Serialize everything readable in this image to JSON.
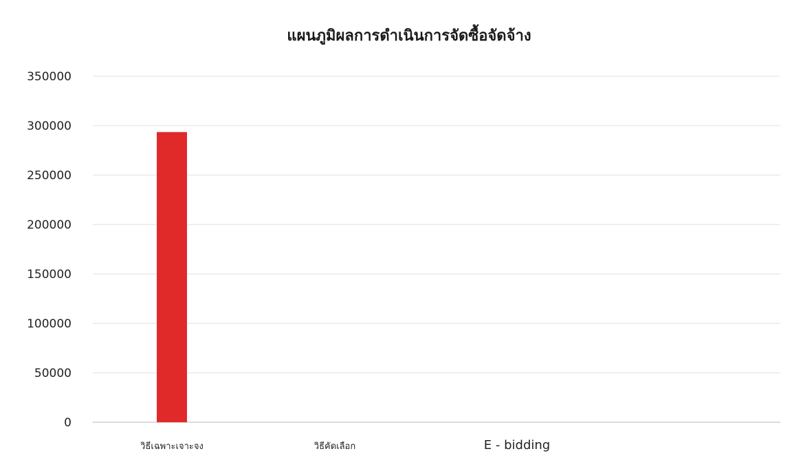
{
  "chart_data": {
    "type": "bar",
    "title": "แผนภูมิผลการดำเนินการจัดซื้อจัดจ้าง",
    "xlabel": "",
    "ylabel": "",
    "categories": [
      "วิธีเฉพาะเจาะจง",
      "วิธีคัดเลือก",
      "E - bidding"
    ],
    "values": [
      293500,
      0,
      0
    ],
    "ylim": [
      0,
      350000
    ],
    "yticks": [
      "0",
      "50000",
      "100000",
      "150000",
      "200000",
      "250000",
      "300000",
      "350000"
    ],
    "grid": true,
    "legend": "none",
    "colors": {
      "bar": "#e02a2a"
    }
  }
}
